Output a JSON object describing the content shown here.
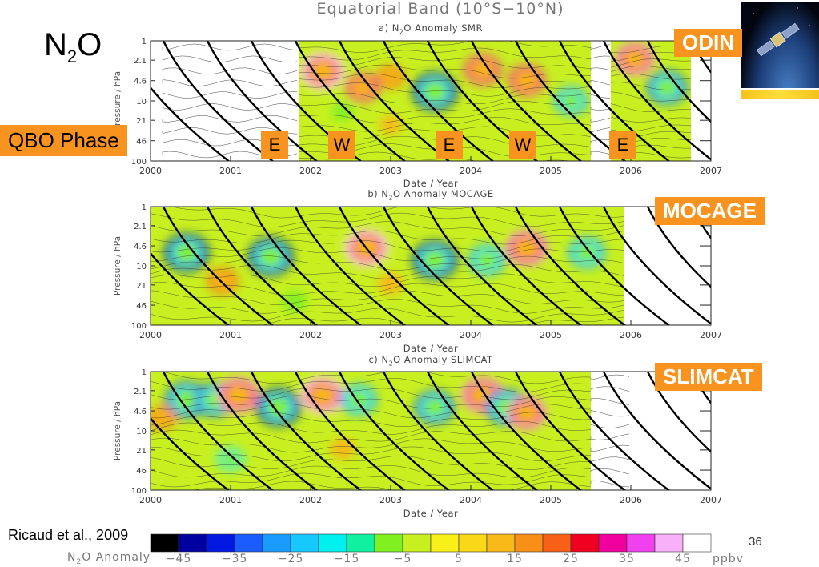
{
  "header": {
    "title": "Equatorial Band (10°S−10°N)",
    "species_main": "N",
    "species_sub": "2",
    "species_tail": "O"
  },
  "labels": {
    "qbo": "QBO Phase",
    "odin": "ODIN",
    "mocage": "MOCAGE",
    "slimcat": "SLIMCAT",
    "citation": "Ricaud et al., 2009",
    "page_number": "36",
    "phases": [
      "E",
      "W",
      "E",
      "W",
      "E"
    ]
  },
  "colorbar": {
    "label_pre": "N",
    "label_sub": "2",
    "label_post": "O Anomaly",
    "unit": "ppbv",
    "ticks": [
      "−45",
      "−35",
      "−25",
      "−15",
      "−5",
      "5",
      "15",
      "25",
      "35",
      "45"
    ],
    "colors": [
      "#000000",
      "#0000a0",
      "#0018e0",
      "#1a5cff",
      "#1a9cff",
      "#17c8ff",
      "#00f0f0",
      "#10f0a0",
      "#80f020",
      "#c8f020",
      "#f8f018",
      "#f8d818",
      "#f8b818",
      "#f89018",
      "#f86018",
      "#f00020",
      "#f0009c",
      "#f040f0",
      "#f8b0f8",
      "#ffffff"
    ]
  },
  "chart_data": [
    {
      "type": "heatmap",
      "title_pre": "a) N",
      "title_sub": "2",
      "title_post": "O Anomaly SMR",
      "xlabel": "Date / Year",
      "ylabel": "Pressure / hPa",
      "x_ticks": [
        "2000",
        "2001",
        "2002",
        "2003",
        "2004",
        "2005",
        "2006",
        "2007"
      ],
      "y_ticks": [
        "1",
        "2.1",
        "4.6",
        "10",
        "21",
        "46",
        "100"
      ],
      "xlim": [
        2000,
        2007
      ],
      "ylim_hpa": [
        100,
        1
      ],
      "y_scale": "log",
      "data_span": [
        [
          2001.85,
          2005.5
        ],
        [
          2005.75,
          2006.75
        ]
      ],
      "contour_only_span": [
        [
          2000.15,
          2001.85
        ],
        [
          2005.5,
          2005.75
        ]
      ],
      "features": [
        {
          "x": 2002.15,
          "p": 3.2,
          "v": 45
        },
        {
          "x": 2002.65,
          "p": 6.0,
          "v": 25
        },
        {
          "x": 2003.0,
          "p": 4.0,
          "v": 15
        },
        {
          "x": 2003.55,
          "p": 7.0,
          "v": -45
        },
        {
          "x": 2004.15,
          "p": 3.0,
          "v": 30
        },
        {
          "x": 2004.7,
          "p": 4.5,
          "v": 30
        },
        {
          "x": 2005.25,
          "p": 10.0,
          "v": -25
        },
        {
          "x": 2006.05,
          "p": 2.0,
          "v": 35
        },
        {
          "x": 2006.45,
          "p": 6.0,
          "v": -35
        },
        {
          "x": 2003.0,
          "p": 25.0,
          "v": 5
        },
        {
          "x": 2002.4,
          "p": 15.0,
          "v": -5
        }
      ]
    },
    {
      "type": "heatmap",
      "title_pre": "b) N",
      "title_sub": "2",
      "title_post": "O Anomaly MOCAGE",
      "xlabel": "Date / Year",
      "ylabel": "Pressure / hPa",
      "x_ticks": [
        "2000",
        "2001",
        "2002",
        "2003",
        "2004",
        "2005",
        "2006",
        "2007"
      ],
      "y_ticks": [
        "1",
        "2.1",
        "4.6",
        "10",
        "21",
        "46",
        "100"
      ],
      "xlim": [
        2000,
        2007
      ],
      "ylim_hpa": [
        100,
        1
      ],
      "y_scale": "log",
      "data_span": [
        [
          2000.0,
          2005.92
        ]
      ],
      "contour_only_span": [],
      "features": [
        {
          "x": 2000.45,
          "p": 6.0,
          "v": -45
        },
        {
          "x": 2001.5,
          "p": 7.0,
          "v": -45
        },
        {
          "x": 2002.7,
          "p": 5.0,
          "v": 45
        },
        {
          "x": 2003.55,
          "p": 8.0,
          "v": -45
        },
        {
          "x": 2004.2,
          "p": 8.0,
          "v": -30
        },
        {
          "x": 2004.7,
          "p": 5.0,
          "v": 40
        },
        {
          "x": 2005.45,
          "p": 6.0,
          "v": -30
        },
        {
          "x": 2000.9,
          "p": 18.0,
          "v": 20
        },
        {
          "x": 2003.0,
          "p": 20.0,
          "v": 10
        },
        {
          "x": 2001.8,
          "p": 40.0,
          "v": -10
        }
      ]
    },
    {
      "type": "heatmap",
      "title_pre": "c) N",
      "title_sub": "2",
      "title_post": "O Anomaly SLIMCAT",
      "xlabel": "Date / Year",
      "ylabel": "Pressure / hPa",
      "x_ticks": [
        "2000",
        "2001",
        "2002",
        "2003",
        "2004",
        "2005",
        "2006",
        "2007"
      ],
      "y_ticks": [
        "1",
        "2.1",
        "4.6",
        "10",
        "21",
        "46",
        "100"
      ],
      "xlim": [
        2000,
        2007
      ],
      "ylim_hpa": [
        100,
        1
      ],
      "y_scale": "log",
      "data_span": [
        [
          2000.0,
          2005.5
        ]
      ],
      "contour_only_span": [
        [
          2005.5,
          2006.0
        ]
      ],
      "features": [
        {
          "x": 2000.45,
          "p": 3.0,
          "v": -40
        },
        {
          "x": 2000.8,
          "p": 3.0,
          "v": -35
        },
        {
          "x": 2001.1,
          "p": 2.5,
          "v": 40
        },
        {
          "x": 2001.6,
          "p": 4.0,
          "v": -45
        },
        {
          "x": 2002.15,
          "p": 2.5,
          "v": 45
        },
        {
          "x": 2002.6,
          "p": 3.0,
          "v": -30
        },
        {
          "x": 2003.55,
          "p": 4.0,
          "v": -35
        },
        {
          "x": 2004.15,
          "p": 2.5,
          "v": 40
        },
        {
          "x": 2004.45,
          "p": 4.0,
          "v": -40
        },
        {
          "x": 2004.7,
          "p": 5.0,
          "v": 35
        },
        {
          "x": 2002.4,
          "p": 20.0,
          "v": 10
        },
        {
          "x": 2001.0,
          "p": 30.0,
          "v": -15
        },
        {
          "x": 2000.15,
          "p": 6.0,
          "v": 15
        }
      ]
    }
  ]
}
